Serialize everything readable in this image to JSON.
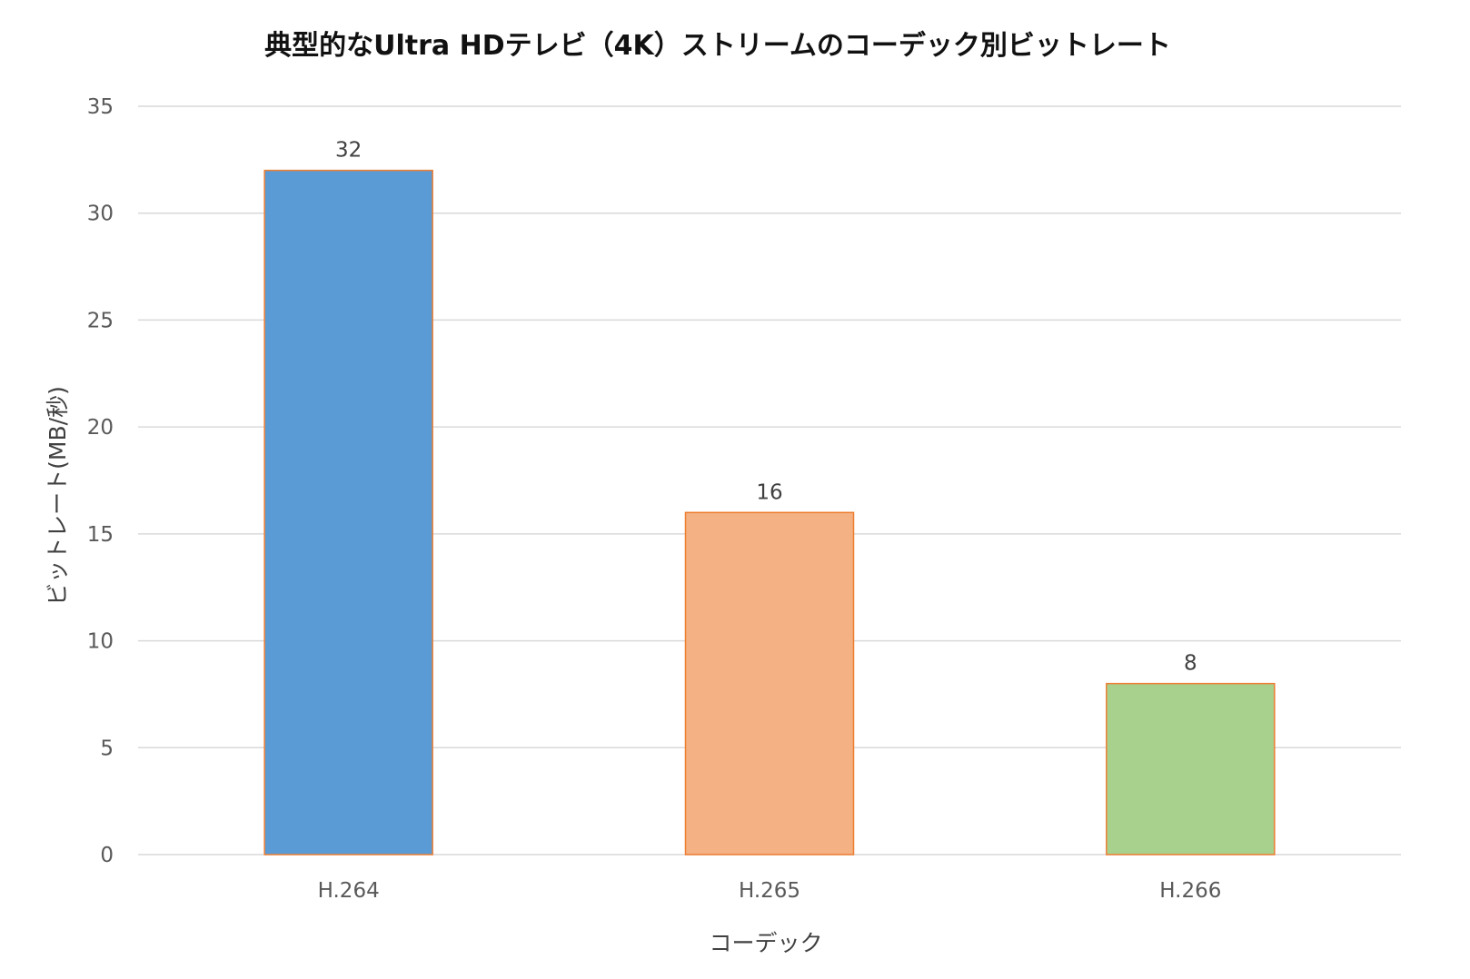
{
  "chart_data": {
    "type": "bar",
    "title": "典型的なUltra HDテレビ（4K）ストリームのコーデック別ビットレート",
    "xlabel": "コーデック",
    "ylabel": "ビットレート(MB/秒)",
    "categories": [
      "H.264",
      "H.265",
      "H.266"
    ],
    "values": [
      32,
      16,
      8
    ],
    "data_labels": [
      "32",
      "16",
      "8"
    ],
    "bar_colors": [
      "#5b9bd5",
      "#f4b183",
      "#a9d18e"
    ],
    "bar_edge_color": "#ed7d31",
    "ylim": [
      0,
      35
    ],
    "yticks": [
      0,
      5,
      10,
      15,
      20,
      25,
      30,
      35
    ],
    "grid": true,
    "legend": "none"
  }
}
